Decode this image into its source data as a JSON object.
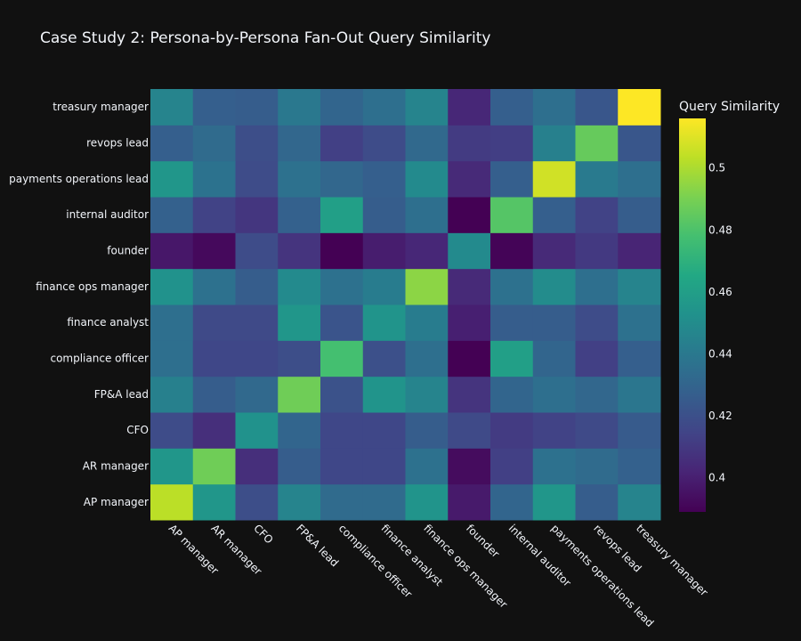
{
  "chart_data": {
    "type": "heatmap",
    "title": "Case Study 2: Persona-by-Persona Fan-Out Query Similarity",
    "xlabel": "",
    "ylabel": "",
    "x_categories": [
      "AP manager",
      "AR manager",
      "CFO",
      "FP&A lead",
      "compliance officer",
      "finance analyst",
      "finance ops manager",
      "founder",
      "internal auditor",
      "payments operations lead",
      "revops lead",
      "treasury manager"
    ],
    "y_categories": [
      "AP manager",
      "AR manager",
      "CFO",
      "FP&A lead",
      "compliance officer",
      "finance analyst",
      "finance ops manager",
      "founder",
      "internal auditor",
      "payments operations lead",
      "revops lead",
      "treasury manager"
    ],
    "z": [
      [
        0.503,
        0.455,
        0.419,
        0.446,
        0.433,
        0.433,
        0.454,
        0.398,
        0.43,
        0.455,
        0.426,
        0.446
      ],
      [
        0.455,
        0.488,
        0.406,
        0.426,
        0.416,
        0.416,
        0.436,
        0.393,
        0.413,
        0.436,
        0.433,
        0.428
      ],
      [
        0.418,
        0.406,
        0.453,
        0.43,
        0.416,
        0.416,
        0.426,
        0.417,
        0.411,
        0.414,
        0.417,
        0.425
      ],
      [
        0.444,
        0.426,
        0.432,
        0.488,
        0.421,
        0.454,
        0.446,
        0.408,
        0.43,
        0.435,
        0.431,
        0.439
      ],
      [
        0.435,
        0.416,
        0.416,
        0.419,
        0.478,
        0.42,
        0.435,
        0.389,
        0.46,
        0.43,
        0.413,
        0.427
      ],
      [
        0.435,
        0.417,
        0.417,
        0.455,
        0.422,
        0.454,
        0.442,
        0.4,
        0.426,
        0.426,
        0.418,
        0.436
      ],
      [
        0.453,
        0.436,
        0.426,
        0.449,
        0.436,
        0.442,
        0.494,
        0.404,
        0.436,
        0.45,
        0.435,
        0.446
      ],
      [
        0.397,
        0.392,
        0.418,
        0.408,
        0.389,
        0.399,
        0.403,
        0.449,
        0.39,
        0.404,
        0.41,
        0.402
      ],
      [
        0.428,
        0.414,
        0.409,
        0.428,
        0.46,
        0.426,
        0.435,
        0.389,
        0.482,
        0.427,
        0.414,
        0.426
      ],
      [
        0.455,
        0.437,
        0.418,
        0.436,
        0.431,
        0.427,
        0.449,
        0.404,
        0.427,
        0.507,
        0.441,
        0.435
      ],
      [
        0.427,
        0.433,
        0.419,
        0.431,
        0.413,
        0.418,
        0.432,
        0.411,
        0.412,
        0.444,
        0.486,
        0.423
      ],
      [
        0.446,
        0.427,
        0.426,
        0.44,
        0.43,
        0.435,
        0.446,
        0.403,
        0.427,
        0.435,
        0.423,
        0.516
      ]
    ],
    "colorscale": "Viridis",
    "zmin": 0.389,
    "zmax": 0.516,
    "colorbar": {
      "title": "Query Similarity",
      "ticks": [
        0.4,
        0.42,
        0.44,
        0.46,
        0.48,
        0.5
      ],
      "tick_labels": [
        "0.4",
        "0.42",
        "0.44",
        "0.46",
        "0.48",
        "0.5"
      ]
    },
    "colors": {
      "background": "#111111",
      "text": "#f2f5fa",
      "viridis": [
        "#440154",
        "#482475",
        "#414487",
        "#355f8d",
        "#2a788e",
        "#21918c",
        "#22a884",
        "#44bf70",
        "#7ad151",
        "#bddf26",
        "#fde725"
      ]
    }
  }
}
